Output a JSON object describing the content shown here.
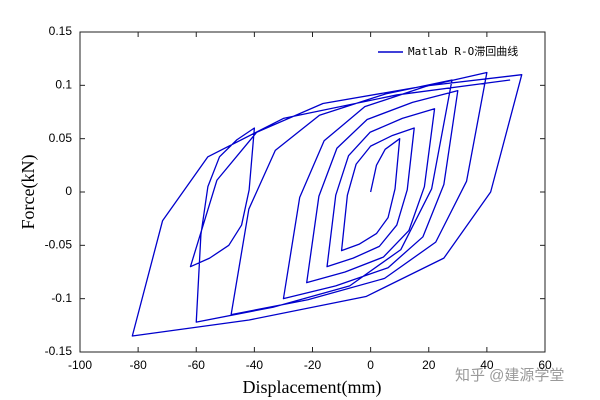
{
  "chart_data": {
    "type": "line",
    "xlabel": "Displacement(mm)",
    "ylabel": "Force(kN)",
    "watermark": "知乎 @建源学堂",
    "legend": "top-right",
    "xlim": [
      -100,
      60
    ],
    "xticks": [
      -100,
      -80,
      -60,
      -40,
      -20,
      0,
      20,
      40,
      60
    ],
    "ylim": [
      -0.15,
      0.15
    ],
    "yticks": [
      -0.15,
      -0.1,
      -0.05,
      0,
      0.05,
      0.1,
      0.15
    ],
    "x": [
      0,
      2,
      5,
      10,
      8.4,
      6,
      2,
      -4,
      -10,
      -8,
      -5,
      0,
      7.5,
      15,
      12.6,
      9,
      3,
      -6,
      -15,
      -12,
      -7.6,
      -0.2,
      10.9,
      22,
      18.5,
      13.2,
      4.4,
      -8.8,
      -22,
      -17.8,
      -11.6,
      -1.2,
      14.4,
      30,
      25.2,
      18,
      6,
      -12,
      -30,
      -24.4,
      -16,
      -2,
      19,
      40,
      33,
      22.4,
      4.8,
      -21.6,
      -48,
      -41.9,
      -32.8,
      -17.6,
      5.2,
      28,
      21,
      10.4,
      -7.2,
      -33.6,
      -60,
      -58.4,
      -56,
      -52,
      -46,
      -40,
      -41.8,
      -44.4,
      -48.8,
      -55.4,
      -62,
      -52.9,
      -39.2,
      -16.4,
      17.8,
      52,
      41.3,
      25.2,
      -1.6,
      -41.8,
      -82,
      -71.6,
      -56,
      -30,
      9,
      48
    ],
    "series": [
      {
        "name": "Matlab R-O滞回曲线",
        "color": "#0000cc",
        "values": [
          0,
          0.025,
          0.04,
          0.05,
          0.003,
          -0.024,
          -0.039,
          -0.049,
          -0.055,
          -0.003,
          0.026,
          0.043,
          0.053,
          0.06,
          0.002,
          -0.031,
          -0.051,
          -0.062,
          -0.07,
          -0.003,
          0.034,
          0.056,
          0.069,
          0.078,
          0.005,
          -0.036,
          -0.061,
          -0.075,
          -0.085,
          -0.004,
          0.041,
          0.068,
          0.084,
          0.095,
          0.007,
          -0.042,
          -0.071,
          -0.088,
          -0.1,
          -0.005,
          0.048,
          0.08,
          0.099,
          0.112,
          0.01,
          -0.047,
          -0.081,
          -0.101,
          -0.115,
          -0.016,
          0.039,
          0.072,
          0.092,
          0.105,
          0.003,
          -0.054,
          -0.088,
          -0.108,
          -0.122,
          -0.04,
          0.005,
          0.033,
          0.049,
          0.06,
          0.002,
          -0.031,
          -0.05,
          -0.062,
          -0.07,
          0.011,
          0.056,
          0.083,
          0.099,
          0.11,
          0,
          -0.062,
          -0.098,
          -0.12,
          -0.135,
          -0.027,
          0.033,
          0.069,
          0.091,
          0.105
        ]
      }
    ]
  }
}
